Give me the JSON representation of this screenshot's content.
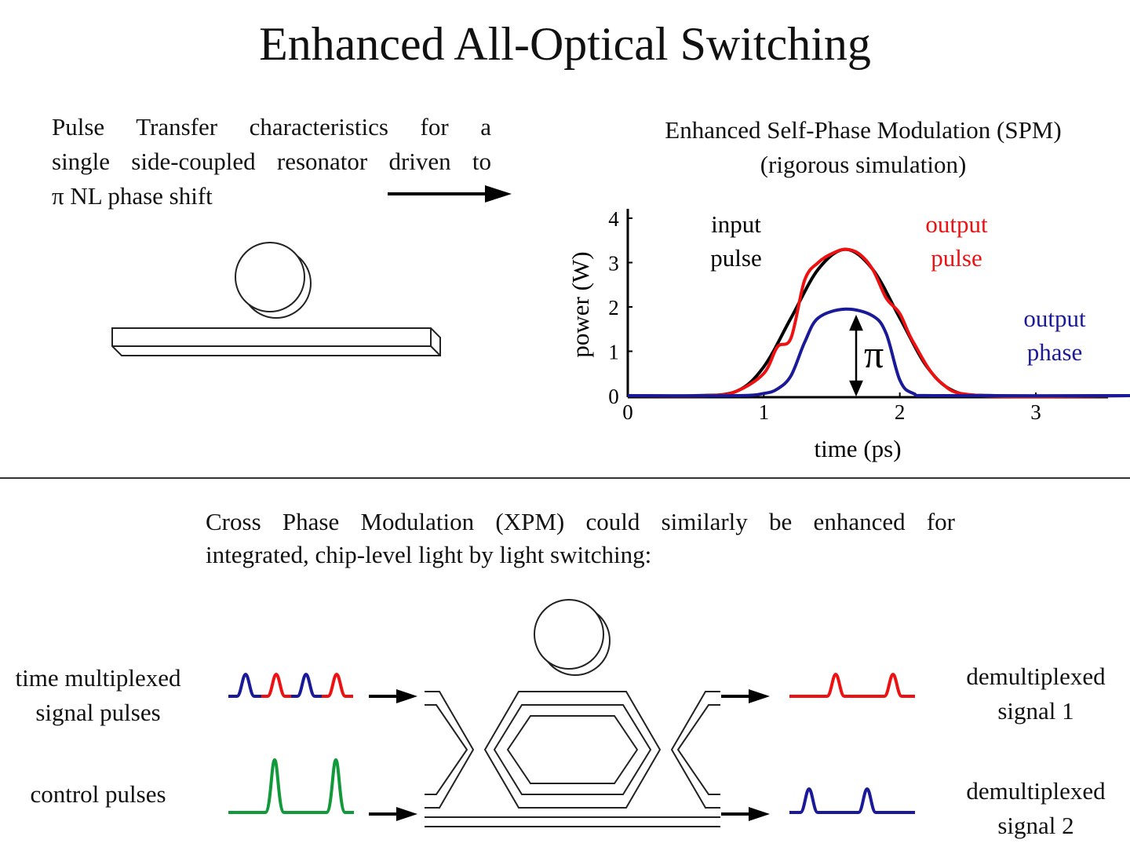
{
  "title": "Enhanced All-Optical Switching",
  "description": {
    "line1": "Pulse Transfer characteristics for a",
    "line2": "single side-coupled resonator driven to",
    "line3": "π NL phase shift"
  },
  "spm": {
    "title_line1": "Enhanced Self-Phase Modulation (SPM)",
    "title_line2": "(rigorous simulation)"
  },
  "chart_data": {
    "type": "line",
    "xlabel": "time (ps)",
    "ylabel": "power (W)",
    "xlim": [
      0,
      3.7
    ],
    "ylim": [
      0,
      4
    ],
    "xticks": [
      "0",
      "1",
      "2",
      "3"
    ],
    "yticks": [
      "0",
      "1",
      "2",
      "3",
      "4"
    ],
    "annotation": "π",
    "series": [
      {
        "name": "input pulse",
        "color": "#000000",
        "x": [
          0.0,
          0.5,
          0.8,
          1.0,
          1.2,
          1.4,
          1.6,
          1.8,
          2.0,
          2.2,
          2.4,
          2.7,
          3.7
        ],
        "y": [
          0.0,
          0.0,
          0.1,
          0.65,
          1.75,
          2.85,
          3.3,
          2.85,
          1.75,
          0.65,
          0.1,
          0.0,
          0.0
        ]
      },
      {
        "name": "output pulse",
        "color": "#ee1111",
        "x": [
          0.0,
          0.6,
          0.8,
          1.0,
          1.1,
          1.2,
          1.3,
          1.4,
          1.5,
          1.6,
          1.7,
          1.8,
          1.9,
          2.0,
          2.1,
          2.3,
          2.6,
          3.7
        ],
        "y": [
          0.0,
          0.0,
          0.1,
          0.5,
          1.1,
          1.3,
          2.6,
          3.0,
          3.2,
          3.3,
          3.2,
          2.85,
          2.2,
          1.85,
          1.2,
          0.3,
          0.0,
          0.0
        ]
      },
      {
        "name": "output phase",
        "color": "#1a1a99",
        "x": [
          0.0,
          0.8,
          1.0,
          1.1,
          1.2,
          1.3,
          1.4,
          1.6,
          1.8,
          1.9,
          2.0,
          2.1,
          2.3,
          3.7
        ],
        "y": [
          0.0,
          0.0,
          0.05,
          0.15,
          0.45,
          1.2,
          1.75,
          1.95,
          1.8,
          1.4,
          0.35,
          0.05,
          0.0,
          0.0
        ]
      }
    ]
  },
  "legend_labels": {
    "input_line1": "input",
    "input_line2": "pulse",
    "output_line1": "output",
    "output_line2": "pulse",
    "phase_line1": "output",
    "phase_line2": "phase"
  },
  "xpm": {
    "line1": "Cross Phase Modulation (XPM) could similarly be enhanced for",
    "line2": "integrated, chip-level light by light switching:"
  },
  "labels": {
    "signal_line1": "time multiplexed",
    "signal_line2": "signal pulses",
    "control": "control pulses",
    "demux1_line1": "demultiplexed",
    "demux1_line2": "signal 1",
    "demux2_line1": "demultiplexed",
    "demux2_line2": "signal 2"
  },
  "colors": {
    "red": "#ee1111",
    "blue": "#1a1a99",
    "green": "#11993a",
    "black": "#000000"
  }
}
